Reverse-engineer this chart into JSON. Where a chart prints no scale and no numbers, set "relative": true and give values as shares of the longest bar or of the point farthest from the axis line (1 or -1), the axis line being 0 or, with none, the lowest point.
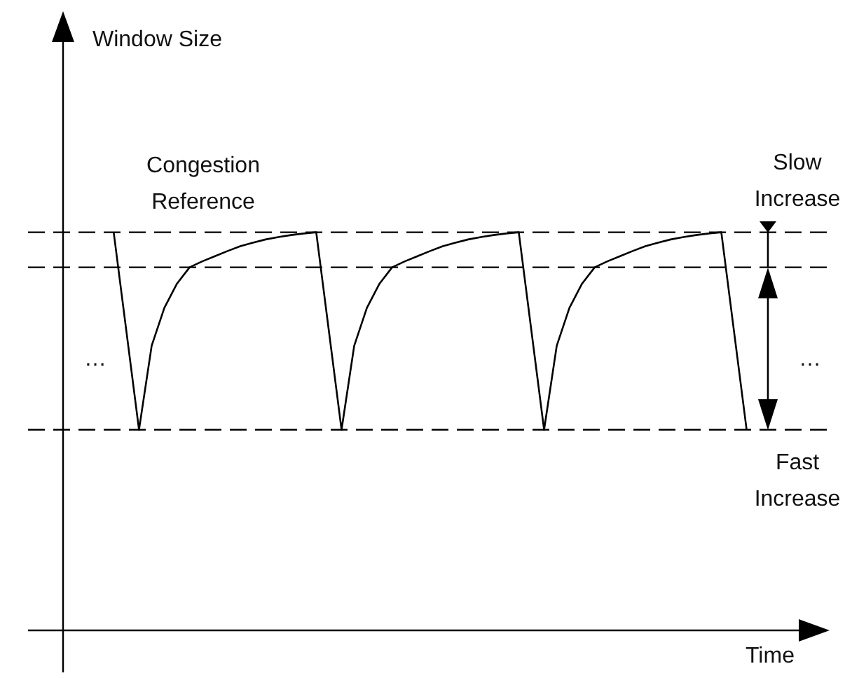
{
  "chart_data": {
    "type": "line",
    "relative": true,
    "xlabel": "Time",
    "annotations": [
      "Congestion Reference",
      "Slow Increase",
      "Fast Increase",
      "…",
      "…",
      "Window Size"
    ],
    "categories": [
      null,
      null,
      null,
      null,
      null,
      null,
      null,
      null,
      null,
      null,
      null,
      null,
      null,
      null,
      null,
      null,
      null,
      null,
      null,
      null,
      null,
      null,
      null,
      null,
      null,
      null,
      null,
      null,
      null,
      null,
      null,
      null,
      null,
      null,
      null,
      null,
      null,
      null,
      null,
      null,
      null,
      null,
      null,
      null,
      null,
      null,
      null,
      null,
      null,
      null,
      null,
      null,
      null,
      null,
      null,
      null,
      null,
      null,
      null,
      null,
      null
    ],
    "series": [
      {
        "color": "#000000",
        "values": [
          null,
          null,
          null,
          null,
          1,
          null,
          0.504,
          0.715,
          0.81,
          0.871,
          0.912,
          0.927,
          0.94,
          0.953,
          0.965,
          0.974,
          0.982,
          0.988,
          0.993,
          0.997,
          1,
          null,
          0.504,
          0.715,
          0.81,
          0.871,
          0.912,
          0.927,
          0.94,
          0.953,
          0.965,
          0.974,
          0.982,
          0.988,
          0.993,
          0.997,
          1,
          null,
          0.504,
          0.715,
          0.81,
          0.871,
          0.912,
          0.927,
          0.94,
          0.953,
          0.965,
          0.974,
          0.982,
          0.988,
          0.993,
          0.997,
          1,
          null,
          0.504,
          null,
          null,
          null,
          null,
          null,
          null
        ]
      }
    ],
    "ref_lines": [
      {
        "axis": "y",
        "value": 1,
        "color": "#000000",
        "line_style": "dashed"
      },
      {
        "axis": "y",
        "value": 0.912,
        "color": "#000000",
        "line_style": "dashed"
      },
      {
        "axis": "y",
        "value": 0.504,
        "color": "#000000",
        "line_style": "dashed"
      }
    ],
    "legend": false,
    "marker": "none",
    "line_style": "solid"
  }
}
